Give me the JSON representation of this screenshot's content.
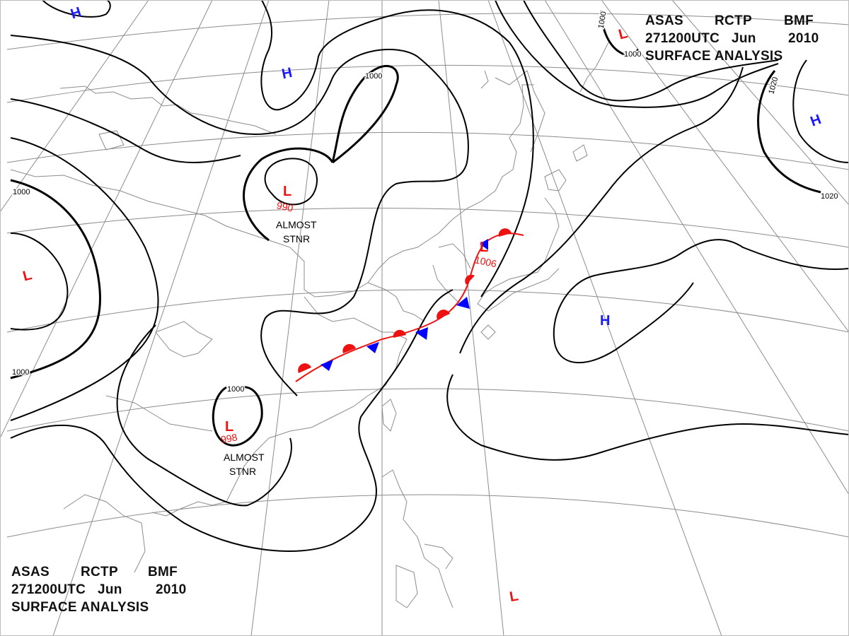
{
  "header": {
    "line1": [
      "ASAS",
      "RCTP",
      "BMF"
    ],
    "line2": [
      "271200UTC",
      "Jun",
      "2010"
    ],
    "line3": "SURFACE ANALYSIS"
  },
  "isobar_labels": {
    "v1000a": "1000",
    "v1000b": "1000",
    "v1000c": "1000",
    "v1000d": "1000",
    "v1000e": "1000",
    "v1000f": "1000",
    "v1020a": "1020",
    "v1020b": "1020"
  },
  "pressure_centers": {
    "high_symbol": "H",
    "low_symbol": "L",
    "low_north_value": "990",
    "low_south_value": "998",
    "low_front_value": "1006",
    "note_line1": "ALMOST",
    "note_line2": "STNR"
  },
  "colors": {
    "high": "#1a1aff",
    "low": "#ee1111",
    "warm_front": "#ee1111",
    "cold_front": "#0000ff",
    "isobar": "#000000",
    "coast": "#8c8c8c",
    "grid": "#8c8c8c"
  }
}
